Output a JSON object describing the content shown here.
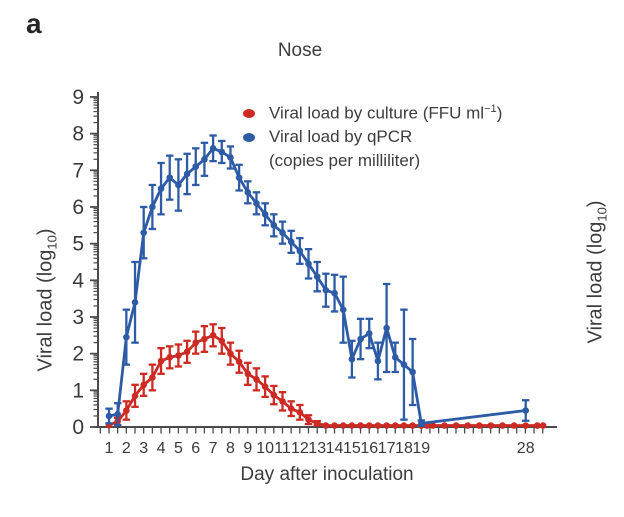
{
  "colors": {
    "culture": "#cc2a22",
    "qpcr": "#2d5ba5",
    "axis": "#4a4a4a",
    "text": "#3a3a3a"
  },
  "chart_data": {
    "type": "line",
    "panel_label": "a",
    "title": "Nose",
    "xlabel": "Day after inoculation",
    "ylabel": {
      "pre": "Viral load (log",
      "sub": "10",
      "post": ")"
    },
    "legend": {
      "culture": {
        "pre": "Viral load by culture (FFU ml",
        "sup": "−1",
        "post": ")"
      },
      "qpcr_line1": "Viral load by qPCR",
      "qpcr_line2": "(copies per milliliter)"
    },
    "x_axis": {
      "ticks": [
        1,
        2,
        3,
        4,
        5,
        6,
        7,
        8,
        9,
        10,
        11,
        12,
        13,
        14,
        15,
        16,
        17,
        18,
        19,
        28
      ],
      "minor_step_days": 0.5,
      "range": [
        0.5,
        29.9
      ],
      "note_break_after": 19
    },
    "y_axis": {
      "ticks": [
        0,
        1,
        2,
        3,
        4,
        5,
        6,
        7,
        8,
        9
      ],
      "range": [
        0,
        9
      ],
      "scale": "log10_units"
    },
    "series": [
      {
        "name": "culture",
        "color_key": "culture",
        "points": [
          [
            1,
            0.05,
            0.04
          ],
          [
            1.5,
            0.15,
            0.1
          ],
          [
            2,
            0.45,
            0.25
          ],
          [
            2.5,
            0.85,
            0.3
          ],
          [
            3,
            1.15,
            0.3
          ],
          [
            3.5,
            1.35,
            0.35
          ],
          [
            4,
            1.8,
            0.35
          ],
          [
            4.5,
            1.9,
            0.3
          ],
          [
            5,
            1.95,
            0.3
          ],
          [
            5.5,
            2.05,
            0.3
          ],
          [
            6,
            2.3,
            0.3
          ],
          [
            6.5,
            2.4,
            0.35
          ],
          [
            7,
            2.5,
            0.3
          ],
          [
            7.5,
            2.35,
            0.35
          ],
          [
            8,
            2.0,
            0.3
          ],
          [
            8.5,
            1.78,
            0.3
          ],
          [
            9,
            1.45,
            0.3
          ],
          [
            9.5,
            1.3,
            0.3
          ],
          [
            10,
            1.1,
            0.28
          ],
          [
            10.5,
            0.87,
            0.25
          ],
          [
            11,
            0.7,
            0.25
          ],
          [
            11.5,
            0.5,
            0.2
          ],
          [
            12,
            0.4,
            0.2
          ],
          [
            12.5,
            0.2,
            0.12
          ],
          [
            13,
            0.1,
            0.06
          ],
          [
            13.5,
            0.04,
            0.02
          ],
          [
            14,
            0.04,
            0.02
          ],
          [
            14.5,
            0.04,
            0.02
          ],
          [
            15,
            0.04,
            0.02
          ],
          [
            15.5,
            0.04,
            0.02
          ],
          [
            16,
            0.04,
            0.02
          ],
          [
            16.5,
            0.04,
            0.02
          ],
          [
            17,
            0.04,
            0.02
          ],
          [
            17.5,
            0.04,
            0.02
          ],
          [
            18,
            0.04,
            0.02
          ],
          [
            18.5,
            0.04,
            0.02
          ],
          [
            19,
            0.04,
            0.02
          ],
          [
            19.5,
            0.04,
            0.02
          ],
          [
            20,
            0.04,
            0.02
          ],
          [
            21,
            0.04,
            0.02
          ],
          [
            22,
            0.04,
            0.02
          ],
          [
            23,
            0.04,
            0.02
          ],
          [
            24,
            0.04,
            0.02
          ],
          [
            25,
            0.04,
            0.02
          ],
          [
            26,
            0.04,
            0.02
          ],
          [
            27,
            0.04,
            0.02
          ],
          [
            28,
            0.04,
            0.02
          ],
          [
            29,
            0.04,
            0.02
          ],
          [
            29.5,
            0.04,
            0.02
          ]
        ]
      },
      {
        "name": "qpcr",
        "color_key": "qpcr",
        "points": [
          [
            1,
            0.3,
            0.2
          ],
          [
            1.5,
            0.35,
            0.3
          ],
          [
            2,
            2.45,
            0.75
          ],
          [
            2.5,
            3.4,
            1.1
          ],
          [
            3,
            5.3,
            0.7
          ],
          [
            3.5,
            6.0,
            0.6
          ],
          [
            4,
            6.5,
            0.7
          ],
          [
            4.5,
            6.8,
            0.6
          ],
          [
            5,
            6.6,
            0.7
          ],
          [
            5.5,
            6.9,
            0.55
          ],
          [
            6,
            7.1,
            0.5
          ],
          [
            6.5,
            7.3,
            0.45
          ],
          [
            7,
            7.6,
            0.35
          ],
          [
            7.5,
            7.5,
            0.3
          ],
          [
            8,
            7.35,
            0.3
          ],
          [
            8.5,
            6.8,
            0.35
          ],
          [
            9,
            6.4,
            0.3
          ],
          [
            9.5,
            6.1,
            0.3
          ],
          [
            10,
            5.8,
            0.3
          ],
          [
            10.5,
            5.5,
            0.3
          ],
          [
            11,
            5.3,
            0.3
          ],
          [
            11.5,
            5.05,
            0.3
          ],
          [
            12,
            4.8,
            0.35
          ],
          [
            12.5,
            4.45,
            0.4
          ],
          [
            13,
            4.1,
            0.4
          ],
          [
            13.5,
            3.73,
            0.45
          ],
          [
            14,
            3.65,
            0.5
          ],
          [
            14.5,
            3.2,
            0.9
          ],
          [
            15,
            1.85,
            0.5
          ],
          [
            15.5,
            2.4,
            0.55
          ],
          [
            16,
            2.55,
            0.4
          ],
          [
            16.5,
            1.8,
            0.5
          ],
          [
            17,
            2.7,
            1.2
          ],
          [
            17.5,
            1.9,
            0.4
          ],
          [
            18,
            1.7,
            1.5
          ],
          [
            18.5,
            1.5,
            0.9
          ],
          [
            19,
            0.1,
            0.08
          ],
          [
            28,
            0.45,
            0.28
          ]
        ]
      }
    ]
  }
}
